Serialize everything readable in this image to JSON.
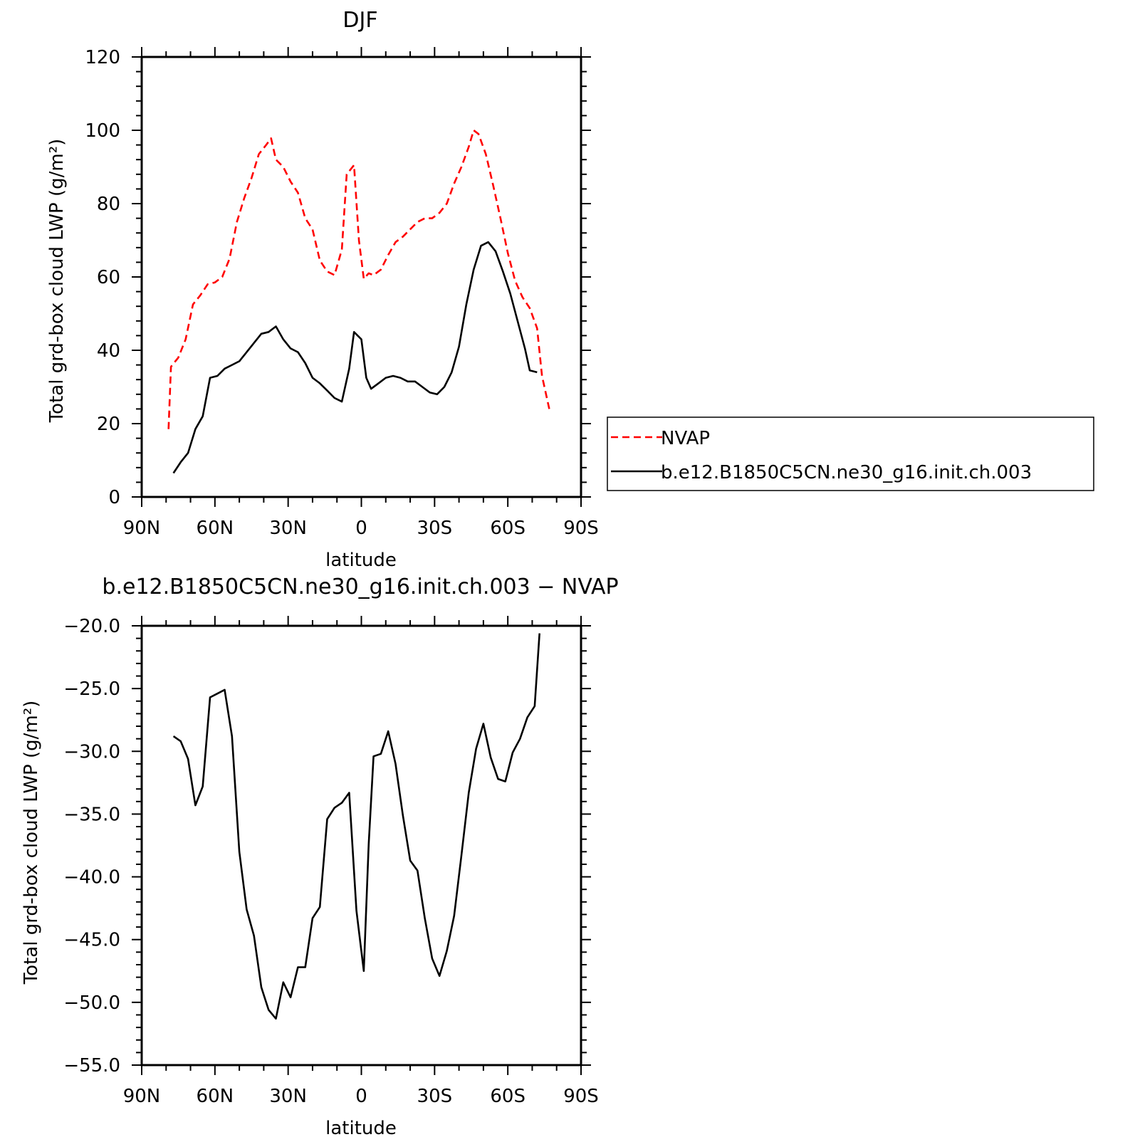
{
  "chart_data": [
    {
      "type": "line",
      "title": "DJF",
      "xlabel": "latitude",
      "ylabel": "Total grd-box cloud LWP (g/m²)",
      "x_direction": "north-to-south",
      "xlim": [
        90,
        -90
      ],
      "ylim": [
        0,
        120
      ],
      "xticks": [
        {
          "value": 90,
          "label": "90N"
        },
        {
          "value": 60,
          "label": "60N"
        },
        {
          "value": 30,
          "label": "30N"
        },
        {
          "value": 0,
          "label": "0"
        },
        {
          "value": -30,
          "label": "30S"
        },
        {
          "value": -60,
          "label": "60S"
        },
        {
          "value": -90,
          "label": "90S"
        }
      ],
      "yticks": [
        {
          "value": 0,
          "label": "0"
        },
        {
          "value": 20,
          "label": "20"
        },
        {
          "value": 40,
          "label": "40"
        },
        {
          "value": 60,
          "label": "60"
        },
        {
          "value": 80,
          "label": "80"
        },
        {
          "value": 100,
          "label": "100"
        },
        {
          "value": 120,
          "label": "120"
        }
      ],
      "legend_position": "right",
      "series": [
        {
          "name": "NVAP",
          "color": "#ff0000",
          "style": "dashed",
          "points": [
            [
              79,
              18.5
            ],
            [
              78,
              35.5
            ],
            [
              75,
              38
            ],
            [
              72,
              43
            ],
            [
              69,
              52.5
            ],
            [
              66,
              55
            ],
            [
              63,
              58
            ],
            [
              60,
              58.5
            ],
            [
              57,
              60
            ],
            [
              54,
              65
            ],
            [
              51,
              75
            ],
            [
              48,
              81.5
            ],
            [
              45,
              87
            ],
            [
              42,
              93.5
            ],
            [
              39,
              96
            ],
            [
              37,
              97.8
            ],
            [
              35,
              92
            ],
            [
              32,
              90
            ],
            [
              29,
              86
            ],
            [
              26,
              83
            ],
            [
              23,
              76
            ],
            [
              20,
              73
            ],
            [
              17,
              64.5
            ],
            [
              14,
              61.5
            ],
            [
              11,
              60.5
            ],
            [
              8,
              67.5
            ],
            [
              6,
              88
            ],
            [
              3,
              90.5
            ],
            [
              1,
              70
            ],
            [
              -1,
              59.5
            ],
            [
              -3,
              61
            ],
            [
              -5,
              60.5
            ],
            [
              -8,
              62
            ],
            [
              -11,
              66
            ],
            [
              -14,
              69.5
            ],
            [
              -17,
              71
            ],
            [
              -20,
              73
            ],
            [
              -23,
              75
            ],
            [
              -26,
              76
            ],
            [
              -29,
              76
            ],
            [
              -32,
              77.5
            ],
            [
              -35,
              80
            ],
            [
              -38,
              85.5
            ],
            [
              -41,
              90
            ],
            [
              -44,
              95.5
            ],
            [
              -46,
              100
            ],
            [
              -48,
              99
            ],
            [
              -51,
              93.5
            ],
            [
              -54,
              85
            ],
            [
              -57,
              76
            ],
            [
              -60,
              66.5
            ],
            [
              -63,
              59
            ],
            [
              -66,
              54.5
            ],
            [
              -69,
              51.5
            ],
            [
              -72,
              46
            ],
            [
              -74,
              33
            ],
            [
              -77,
              24
            ]
          ]
        },
        {
          "name": "b.e12.B1850C5CN.ne30_g16.init.ch.003",
          "color": "#000000",
          "style": "solid",
          "points": [
            [
              77,
              6.5
            ],
            [
              74,
              9.5
            ],
            [
              71,
              12
            ],
            [
              68,
              18.5
            ],
            [
              65,
              22
            ],
            [
              62,
              32.5
            ],
            [
              59,
              33
            ],
            [
              56,
              35
            ],
            [
              53,
              36
            ],
            [
              50,
              37
            ],
            [
              47,
              39.5
            ],
            [
              44,
              42
            ],
            [
              41,
              44.5
            ],
            [
              38,
              45
            ],
            [
              35,
              46.5
            ],
            [
              32,
              43
            ],
            [
              29,
              40.5
            ],
            [
              26,
              39.5
            ],
            [
              23,
              36.5
            ],
            [
              20,
              32.5
            ],
            [
              17,
              31
            ],
            [
              14,
              29
            ],
            [
              11,
              27
            ],
            [
              8,
              26
            ],
            [
              5,
              35
            ],
            [
              3,
              45
            ],
            [
              0,
              43
            ],
            [
              -2,
              32.5
            ],
            [
              -4,
              29.5
            ],
            [
              -7,
              31
            ],
            [
              -10,
              32.5
            ],
            [
              -13,
              33
            ],
            [
              -16,
              32.5
            ],
            [
              -19,
              31.5
            ],
            [
              -22,
              31.5
            ],
            [
              -25,
              30
            ],
            [
              -28,
              28.5
            ],
            [
              -31,
              28
            ],
            [
              -34,
              30
            ],
            [
              -37,
              34
            ],
            [
              -40,
              41
            ],
            [
              -43,
              52.5
            ],
            [
              -46,
              62
            ],
            [
              -49,
              68.5
            ],
            [
              -52,
              69.5
            ],
            [
              -55,
              67
            ],
            [
              -58,
              61.5
            ],
            [
              -61,
              55.5
            ],
            [
              -64,
              48
            ],
            [
              -67,
              40.5
            ],
            [
              -69,
              34.5
            ],
            [
              -72,
              34
            ]
          ]
        }
      ]
    },
    {
      "type": "line",
      "title": "b.e12.B1850C5CN.ne30_g16.init.ch.003 − NVAP",
      "xlabel": "latitude",
      "ylabel": "Total grd-box cloud LWP (g/m²)",
      "x_direction": "north-to-south",
      "xlim": [
        90,
        -90
      ],
      "ylim": [
        -55,
        -20
      ],
      "xticks": [
        {
          "value": 90,
          "label": "90N"
        },
        {
          "value": 60,
          "label": "60N"
        },
        {
          "value": 30,
          "label": "30N"
        },
        {
          "value": 0,
          "label": "0"
        },
        {
          "value": -30,
          "label": "30S"
        },
        {
          "value": -60,
          "label": "60S"
        },
        {
          "value": -90,
          "label": "90S"
        }
      ],
      "yticks": [
        {
          "value": -55,
          "label": "−55.0"
        },
        {
          "value": -50,
          "label": "−50.0"
        },
        {
          "value": -45,
          "label": "−45.0"
        },
        {
          "value": -40,
          "label": "−40.0"
        },
        {
          "value": -35,
          "label": "−35.0"
        },
        {
          "value": -30,
          "label": "−30.0"
        },
        {
          "value": -25,
          "label": "−25.0"
        },
        {
          "value": -20,
          "label": "−20.0"
        }
      ],
      "series": [
        {
          "color": "#000000",
          "style": "solid",
          "points": [
            [
              77,
              -28.8
            ],
            [
              74,
              -29.2
            ],
            [
              71,
              -30.6
            ],
            [
              68,
              -34.3
            ],
            [
              65,
              -32.8
            ],
            [
              62,
              -25.7
            ],
            [
              59,
              -25.4
            ],
            [
              56,
              -25.1
            ],
            [
              53,
              -28.8
            ],
            [
              50,
              -38
            ],
            [
              47,
              -42.6
            ],
            [
              44,
              -44.7
            ],
            [
              41,
              -48.8
            ],
            [
              38,
              -50.6
            ],
            [
              35,
              -51.3
            ],
            [
              32,
              -48.4
            ],
            [
              29,
              -49.6
            ],
            [
              26,
              -47.2
            ],
            [
              23,
              -47.2
            ],
            [
              20,
              -43.3
            ],
            [
              17,
              -42.4
            ],
            [
              14,
              -35.4
            ],
            [
              11,
              -34.5
            ],
            [
              8,
              -34.1
            ],
            [
              5,
              -33.3
            ],
            [
              2,
              -42.7
            ],
            [
              -1,
              -47.5
            ],
            [
              -3,
              -37.4
            ],
            [
              -5,
              -30.4
            ],
            [
              -8,
              -30.2
            ],
            [
              -11,
              -28.4
            ],
            [
              -14,
              -31
            ],
            [
              -17,
              -35.1
            ],
            [
              -20,
              -38.7
            ],
            [
              -23,
              -39.5
            ],
            [
              -26,
              -43.3
            ],
            [
              -29,
              -46.5
            ],
            [
              -32,
              -47.9
            ],
            [
              -35,
              -45.9
            ],
            [
              -38,
              -43.1
            ],
            [
              -41,
              -38.3
            ],
            [
              -44,
              -33.3
            ],
            [
              -47,
              -29.8
            ],
            [
              -50,
              -27.8
            ],
            [
              -53,
              -30.5
            ],
            [
              -56,
              -32.2
            ],
            [
              -59,
              -32.4
            ],
            [
              -62,
              -30.1
            ],
            [
              -65,
              -29
            ],
            [
              -68,
              -27.3
            ],
            [
              -71,
              -26.4
            ],
            [
              -73,
              -20.6
            ]
          ]
        }
      ]
    }
  ]
}
